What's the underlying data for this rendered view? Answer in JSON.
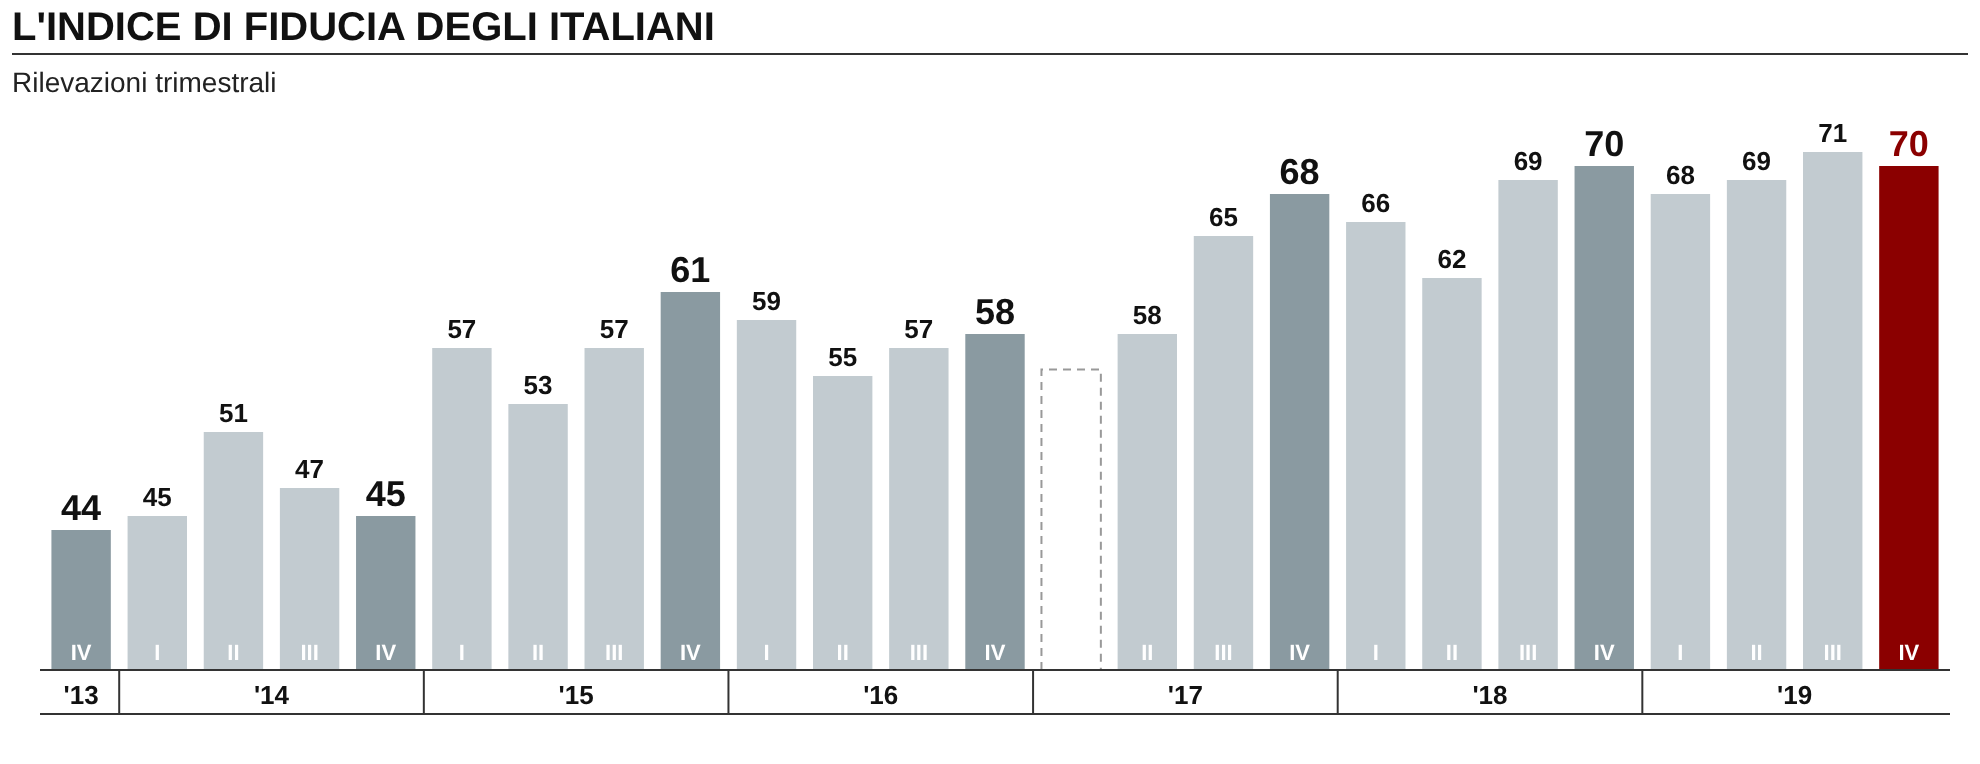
{
  "chart_data": {
    "type": "bar",
    "title": "L'INDICE DI FIDUCIA DEGLI ITALIANI",
    "subtitle": "Rilevazioni trimestrali",
    "categories": [
      "IV",
      "I",
      "II",
      "III",
      "IV",
      "I",
      "II",
      "III",
      "IV",
      "I",
      "II",
      "III",
      "IV",
      null,
      "II",
      "III",
      "IV",
      "I",
      "II",
      "III",
      "IV",
      "I",
      "II",
      "III",
      "IV"
    ],
    "values": [
      44,
      45,
      51,
      47,
      45,
      57,
      53,
      57,
      61,
      59,
      55,
      57,
      58,
      null,
      58,
      65,
      68,
      66,
      62,
      69,
      70,
      68,
      69,
      71,
      70
    ],
    "colors": [
      "#8a9aa1",
      "#c2cbd0",
      "#c2cbd0",
      "#c2cbd0",
      "#8a9aa1",
      "#c2cbd0",
      "#c2cbd0",
      "#c2cbd0",
      "#8a9aa1",
      "#c2cbd0",
      "#c2cbd0",
      "#c2cbd0",
      "#8a9aa1",
      "#999999",
      "#c2cbd0",
      "#c2cbd0",
      "#8a9aa1",
      "#c2cbd0",
      "#c2cbd0",
      "#c2cbd0",
      "#8a9aa1",
      "#c2cbd0",
      "#c2cbd0",
      "#c2cbd0",
      "#8b0000"
    ],
    "ylim": [
      34,
      71
    ],
    "data_labels": true,
    "tick_labels": "x",
    "annotations": [
      "'13",
      "'14",
      "'15",
      "'16",
      "'17",
      "'18",
      "'19"
    ]
  }
}
